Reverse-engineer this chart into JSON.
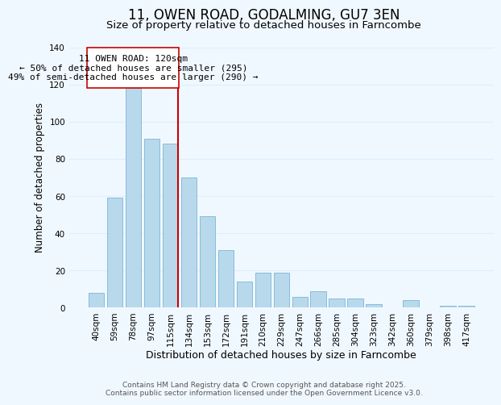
{
  "title": "11, OWEN ROAD, GODALMING, GU7 3EN",
  "subtitle": "Size of property relative to detached houses in Farncombe",
  "xlabel": "Distribution of detached houses by size in Farncombe",
  "ylabel": "Number of detached properties",
  "categories": [
    "40sqm",
    "59sqm",
    "78sqm",
    "97sqm",
    "115sqm",
    "134sqm",
    "153sqm",
    "172sqm",
    "191sqm",
    "210sqm",
    "229sqm",
    "247sqm",
    "266sqm",
    "285sqm",
    "304sqm",
    "323sqm",
    "342sqm",
    "360sqm",
    "379sqm",
    "398sqm",
    "417sqm"
  ],
  "values": [
    8,
    59,
    118,
    91,
    88,
    70,
    49,
    31,
    14,
    19,
    19,
    6,
    9,
    5,
    5,
    2,
    0,
    4,
    0,
    1,
    1
  ],
  "bar_color": "#b8d9ec",
  "bar_edge_color": "#7ab5d4",
  "vline_x_index": 4,
  "vline_color": "#cc0000",
  "ylim": [
    0,
    140
  ],
  "yticks": [
    0,
    20,
    40,
    60,
    80,
    100,
    120,
    140
  ],
  "annotation_title": "11 OWEN ROAD: 120sqm",
  "annotation_line1": "← 50% of detached houses are smaller (295)",
  "annotation_line2": "49% of semi-detached houses are larger (290) →",
  "annotation_box_color": "#ffffff",
  "annotation_box_edge": "#cc0000",
  "footer1": "Contains HM Land Registry data © Crown copyright and database right 2025.",
  "footer2": "Contains public sector information licensed under the Open Government Licence v3.0.",
  "background_color": "#f0f8ff",
  "grid_color": "#ddeeff",
  "title_fontsize": 12,
  "subtitle_fontsize": 9.5,
  "xlabel_fontsize": 9,
  "ylabel_fontsize": 8.5,
  "tick_fontsize": 7.5,
  "annotation_fontsize": 8,
  "footer_fontsize": 6.5
}
